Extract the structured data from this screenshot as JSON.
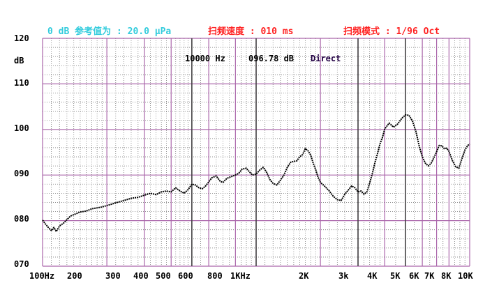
{
  "header": {
    "reference": "0 dB 参考值为 : 20.0 μPa",
    "sweep_speed": "扫频速度 : 010 ms",
    "sweep_mode": "扫频模式 : 1/96 Oct"
  },
  "readout": {
    "frequency": "10000 Hz",
    "level": "096.78 dB",
    "mode": "Direct"
  },
  "colors": {
    "background": "#ffffff",
    "major_grid": "#aa66aa",
    "minor_grid": "#777777",
    "trace": "#000000",
    "reference_text": "#33ccdd",
    "header_text": "#ff2222"
  },
  "chart_data": {
    "type": "line",
    "x_scale": "log",
    "xlim": [
      100,
      10000
    ],
    "ylim": [
      70,
      120
    ],
    "ylabel": "dB",
    "grid": true,
    "y_ticks": [
      {
        "value": 120,
        "label": "120"
      },
      {
        "value": 110,
        "label": "110"
      },
      {
        "value": 100,
        "label": "100"
      },
      {
        "value": 90,
        "label": "090"
      },
      {
        "value": 80,
        "label": "080"
      },
      {
        "value": 70,
        "label": "070"
      }
    ],
    "x_ticks": [
      {
        "value": 100,
        "label": "100Hz"
      },
      {
        "value": 200,
        "label": "200"
      },
      {
        "value": 300,
        "label": "300"
      },
      {
        "value": 400,
        "label": "400"
      },
      {
        "value": 500,
        "label": "500"
      },
      {
        "value": 600,
        "label": "600"
      },
      {
        "value": 800,
        "label": "800"
      },
      {
        "value": 1000,
        "label": "1KHz"
      },
      {
        "value": 2000,
        "label": "2K"
      },
      {
        "value": 3000,
        "label": "3k"
      },
      {
        "value": 4000,
        "label": "4K"
      },
      {
        "value": 5000,
        "label": "5K"
      },
      {
        "value": 6000,
        "label": "6K"
      },
      {
        "value": 7000,
        "label": "7K"
      },
      {
        "value": 8000,
        "label": "8K"
      },
      {
        "value": 10000,
        "label": "10K"
      }
    ],
    "series": [
      {
        "x": [
          100,
          103,
          106,
          110,
          113,
          116,
          120,
          125,
          130,
          135,
          140,
          150,
          160,
          170,
          180,
          190,
          200,
          210,
          220,
          240,
          260,
          280,
          300,
          320,
          340,
          360,
          380,
          400,
          420,
          440,
          460,
          480,
          500,
          520,
          540,
          560,
          580,
          600,
          620,
          650,
          680,
          700,
          730,
          760,
          800,
          830,
          860,
          900,
          930,
          960,
          1000,
          1040,
          1080,
          1120,
          1160,
          1200,
          1250,
          1300,
          1350,
          1400,
          1450,
          1500,
          1550,
          1600,
          1650,
          1700,
          1750,
          1800,
          1850,
          1900,
          1950,
          2000,
          2100,
          2200,
          2300,
          2400,
          2500,
          2600,
          2700,
          2800,
          2900,
          3000,
          3100,
          3200,
          3300,
          3400,
          3500,
          3600,
          3700,
          3800,
          3900,
          4000,
          4200,
          4400,
          4600,
          4800,
          5000,
          5200,
          5400,
          5600,
          5800,
          6000,
          6200,
          6400,
          6600,
          6800,
          7000,
          7200,
          7400,
          7600,
          7800,
          8000,
          8300,
          8600,
          8900,
          9200,
          9500,
          9800,
          10000
        ],
        "y": [
          80.1,
          79.3,
          78.6,
          77.8,
          78.5,
          77.6,
          78.8,
          79.4,
          80.2,
          81.0,
          81.3,
          81.9,
          82.1,
          82.6,
          82.8,
          83.0,
          83.3,
          83.6,
          83.9,
          84.4,
          84.9,
          85.1,
          85.6,
          86.0,
          85.7,
          86.3,
          86.5,
          86.3,
          87.2,
          86.5,
          86.0,
          86.8,
          88.0,
          87.8,
          87.2,
          87.0,
          87.6,
          88.5,
          89.4,
          89.8,
          88.6,
          88.4,
          89.3,
          89.6,
          90.0,
          90.4,
          91.3,
          91.5,
          90.7,
          90.0,
          90.2,
          91.1,
          91.7,
          90.6,
          89.0,
          88.2,
          87.8,
          88.9,
          90.0,
          91.7,
          92.8,
          93.0,
          93.1,
          94.0,
          94.5,
          95.8,
          95.3,
          94.4,
          92.6,
          91.2,
          89.5,
          88.4,
          87.5,
          86.5,
          85.3,
          84.6,
          84.4,
          85.8,
          86.7,
          87.6,
          87.2,
          86.3,
          86.5,
          85.8,
          86.3,
          88.2,
          90.3,
          92.7,
          94.7,
          96.8,
          98.2,
          100.1,
          101.4,
          100.5,
          101.2,
          102.4,
          103.2,
          103.1,
          101.8,
          99.6,
          96.4,
          94.0,
          92.6,
          92.0,
          92.6,
          93.8,
          95.1,
          96.5,
          96.4,
          95.8,
          95.9,
          95.2,
          93.2,
          91.8,
          91.5,
          93.6,
          95.5,
          96.5,
          96.8
        ]
      }
    ]
  }
}
